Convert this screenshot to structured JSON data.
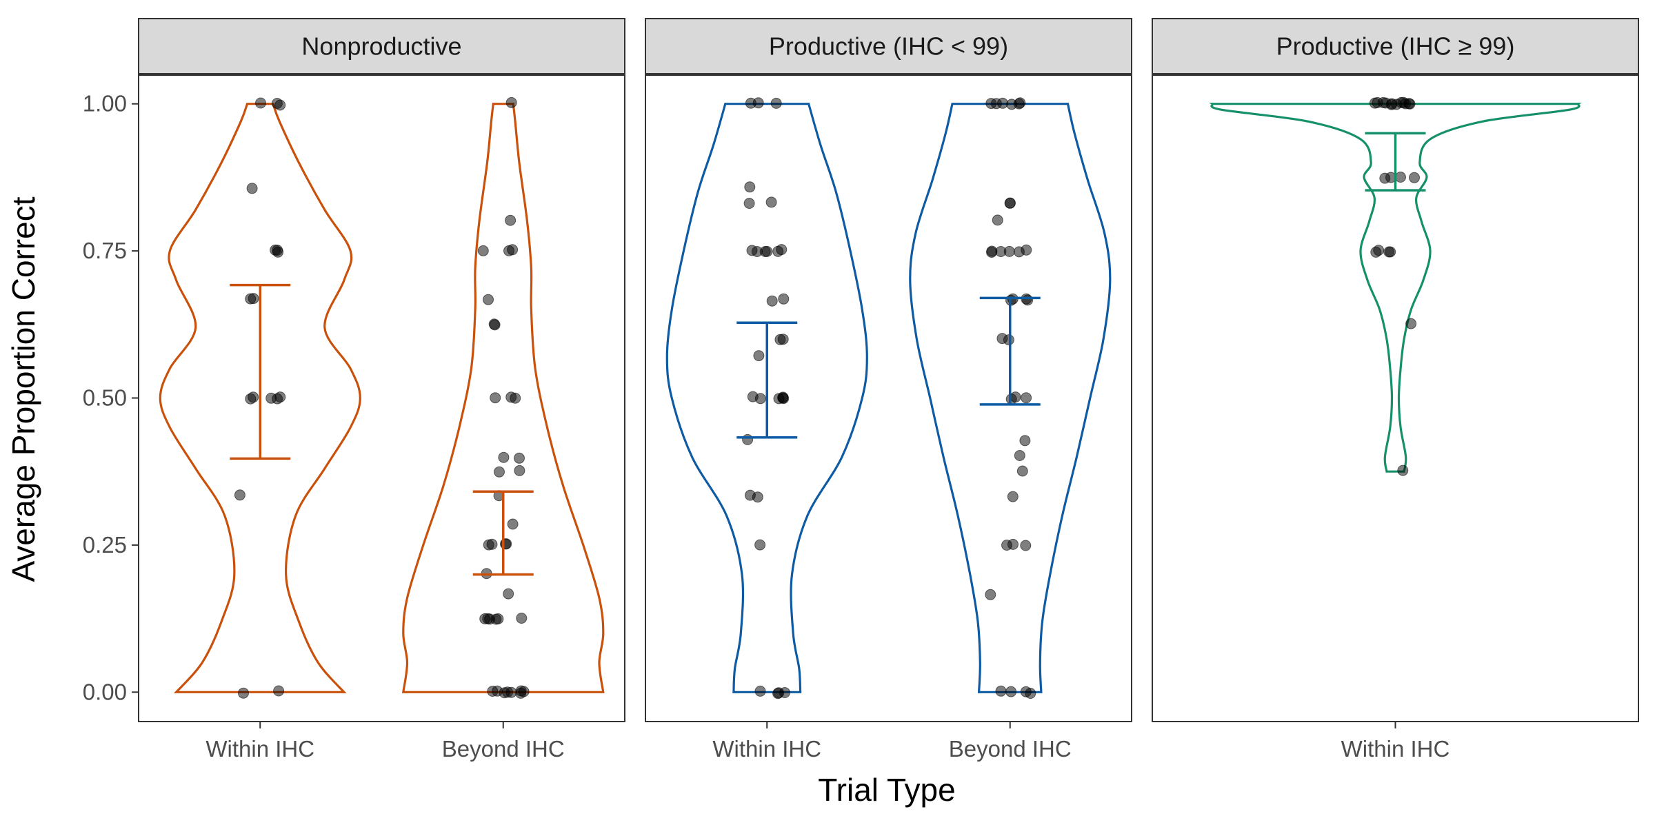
{
  "chart_data": {
    "type": "violin",
    "xlabel": "Trial Type",
    "ylabel": "Average Proportion Correct",
    "ylim": [
      -0.05,
      1.05
    ],
    "yticks": [
      "0.00",
      "0.25",
      "0.50",
      "0.75",
      "1.00"
    ],
    "grid": false,
    "legend": "none",
    "panels": [
      {
        "title": "Nonproductive",
        "color": "#c9510c",
        "groups": [
          {
            "category": "Within IHC",
            "mean": 0.545,
            "ci_low": 0.397,
            "ci_high": 0.692,
            "points": [
              0,
              0,
              0.333,
              0.5,
              0.5,
              0.5,
              0.5,
              0.5,
              0.667,
              0.667,
              0.75,
              0.75,
              0.75,
              0.857,
              1,
              1,
              1
            ],
            "density": [
              [
                0,
                0.13
              ],
              [
                0.05,
                0.09
              ],
              [
                0.12,
                0.06
              ],
              [
                0.2,
                0.04
              ],
              [
                0.3,
                0.055
              ],
              [
                0.38,
                0.1
              ],
              [
                0.45,
                0.14
              ],
              [
                0.5,
                0.155
              ],
              [
                0.55,
                0.14
              ],
              [
                0.62,
                0.1
              ],
              [
                0.7,
                0.13
              ],
              [
                0.75,
                0.14
              ],
              [
                0.82,
                0.1
              ],
              [
                0.9,
                0.06
              ],
              [
                0.97,
                0.03
              ],
              [
                1,
                0.02
              ]
            ]
          },
          {
            "category": "Beyond IHC",
            "mean": 0.27,
            "ci_low": 0.2,
            "ci_high": 0.341,
            "points": [
              0,
              0,
              0,
              0,
              0,
              0,
              0,
              0,
              0.125,
              0.125,
              0.125,
              0.125,
              0.125,
              0.125,
              0.167,
              0.2,
              0.25,
              0.25,
              0.25,
              0.25,
              0.286,
              0.333,
              0.375,
              0.375,
              0.4,
              0.4,
              0.5,
              0.5,
              0.5,
              0.625,
              0.625,
              0.667,
              0.75,
              0.75,
              0.75,
              0.8,
              1
            ],
            "density": [
              [
                0,
                0.5
              ],
              [
                0.05,
                0.48
              ],
              [
                0.1,
                0.5
              ],
              [
                0.16,
                0.48
              ],
              [
                0.25,
                0.4
              ],
              [
                0.35,
                0.3
              ],
              [
                0.45,
                0.22
              ],
              [
                0.55,
                0.16
              ],
              [
                0.65,
                0.14
              ],
              [
                0.72,
                0.14
              ],
              [
                0.8,
                0.12
              ],
              [
                0.9,
                0.08
              ],
              [
                0.97,
                0.06
              ],
              [
                1,
                0.05
              ]
            ]
          }
        ]
      },
      {
        "title": "Productive (IHC < 99)",
        "color": "#0e5ba3",
        "groups": [
          {
            "category": "Within IHC",
            "mean": 0.531,
            "ci_low": 0.433,
            "ci_high": 0.628,
            "points": [
              0,
              0,
              0,
              0,
              0.25,
              0.333,
              0.333,
              0.429,
              0.5,
              0.5,
              0.5,
              0.5,
              0.5,
              0.5,
              0.571,
              0.6,
              0.6,
              0.667,
              0.667,
              0.75,
              0.75,
              0.75,
              0.75,
              0.75,
              0.75,
              0.833,
              0.833,
              0.857,
              1,
              1,
              1
            ],
            "density": [
              [
                0,
                0.28
              ],
              [
                0.04,
                0.27
              ],
              [
                0.1,
                0.22
              ],
              [
                0.2,
                0.21
              ],
              [
                0.3,
                0.34
              ],
              [
                0.4,
                0.63
              ],
              [
                0.5,
                0.8
              ],
              [
                0.57,
                0.84
              ],
              [
                0.65,
                0.8
              ],
              [
                0.75,
                0.7
              ],
              [
                0.85,
                0.58
              ],
              [
                0.93,
                0.45
              ],
              [
                1,
                0.35
              ]
            ]
          },
          {
            "category": "Beyond IHC",
            "mean": 0.579,
            "ci_low": 0.489,
            "ci_high": 0.67,
            "points": [
              0,
              0,
              0,
              0,
              0.167,
              0.25,
              0.25,
              0.25,
              0.333,
              0.375,
              0.4,
              0.429,
              0.5,
              0.5,
              0.5,
              0.6,
              0.6,
              0.667,
              0.667,
              0.667,
              0.667,
              0.75,
              0.75,
              0.75,
              0.75,
              0.75,
              0.75,
              0.8,
              0.833,
              0.833,
              1,
              1,
              1,
              1,
              1,
              1
            ],
            "density": [
              [
                0,
                0.28
              ],
              [
                0.05,
                0.27
              ],
              [
                0.12,
                0.29
              ],
              [
                0.2,
                0.36
              ],
              [
                0.3,
                0.47
              ],
              [
                0.4,
                0.6
              ],
              [
                0.5,
                0.72
              ],
              [
                0.6,
                0.84
              ],
              [
                0.7,
                0.9
              ],
              [
                0.78,
                0.85
              ],
              [
                0.87,
                0.7
              ],
              [
                0.95,
                0.58
              ],
              [
                1,
                0.52
              ]
            ]
          }
        ]
      },
      {
        "title": "Productive (IHC ≥ 99)",
        "color": "#16906a",
        "groups": [
          {
            "category": "Within IHC",
            "mean": 0.902,
            "ci_low": 0.853,
            "ci_high": 0.95,
            "points": [
              0.375,
              0.625,
              0.75,
              0.75,
              0.75,
              0.75,
              0.875,
              0.875,
              0.875,
              0.875,
              1,
              1,
              1,
              1,
              1,
              1,
              1,
              1,
              1,
              1,
              1,
              1
            ],
            "density": [
              [
                0.375,
                0.05
              ],
              [
                0.4,
                0.06
              ],
              [
                0.45,
                0.03
              ],
              [
                0.5,
                0.02
              ],
              [
                0.55,
                0.03
              ],
              [
                0.6,
                0.05
              ],
              [
                0.65,
                0.09
              ],
              [
                0.7,
                0.16
              ],
              [
                0.75,
                0.2
              ],
              [
                0.8,
                0.15
              ],
              [
                0.84,
                0.12
              ],
              [
                0.875,
                0.18
              ],
              [
                0.9,
                0.14
              ],
              [
                0.94,
                0.2
              ],
              [
                0.97,
                0.5
              ],
              [
                0.99,
                1.0
              ],
              [
                1,
                1.05
              ]
            ]
          }
        ]
      }
    ]
  }
}
